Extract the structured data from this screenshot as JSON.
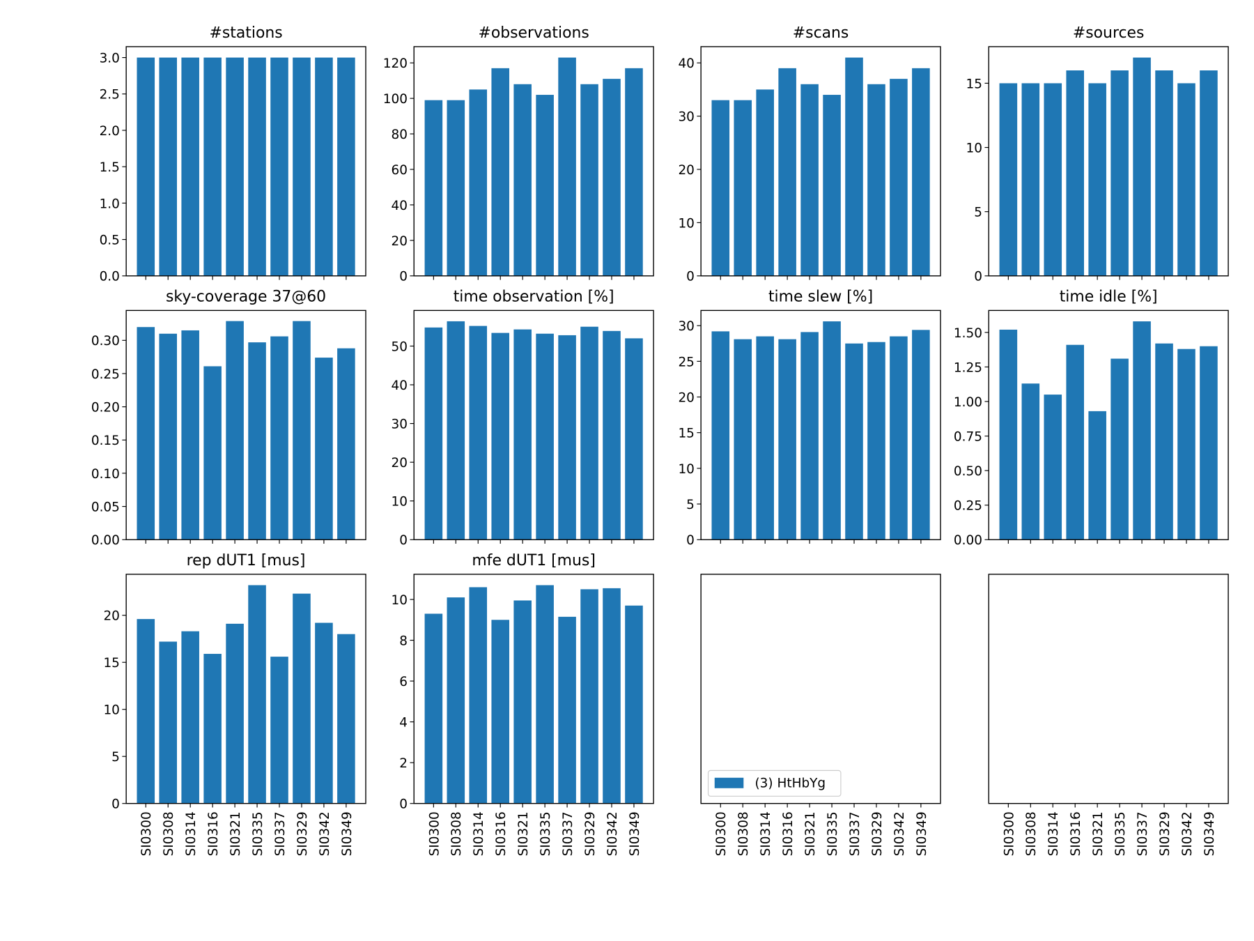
{
  "chart_data": [
    {
      "type": "bar",
      "title": "#stations",
      "color": "#1f77b4",
      "values": [
        3,
        3,
        3,
        3,
        3,
        3,
        3,
        3,
        3,
        3
      ],
      "ylim": [
        0,
        3.15
      ],
      "yticks": [
        {
          "value": 0,
          "label": "0.0"
        },
        0.5,
        {
          "value": 1,
          "label": "1.0"
        },
        1.5,
        {
          "value": 2,
          "label": "2.0"
        },
        2.5,
        {
          "value": 3,
          "label": "3.0"
        }
      ]
    },
    {
      "type": "bar",
      "title": "#observations",
      "color": "#1f77b4",
      "values": [
        99,
        99,
        105,
        117,
        108,
        102,
        123,
        108,
        111,
        117
      ],
      "ylim": [
        0,
        129.15
      ],
      "yticks": [
        0,
        20,
        40,
        60,
        80,
        100,
        120
      ]
    },
    {
      "type": "bar",
      "title": "#scans",
      "color": "#1f77b4",
      "values": [
        33,
        33,
        35,
        39,
        36,
        34,
        41,
        36,
        37,
        39
      ],
      "ylim": [
        0,
        43.05
      ],
      "yticks": [
        0,
        10,
        20,
        30,
        40
      ]
    },
    {
      "type": "bar",
      "title": "#sources",
      "color": "#1f77b4",
      "values": [
        15,
        15,
        15,
        16,
        15,
        16,
        17,
        16,
        15,
        16
      ],
      "ylim": [
        0,
        17.85
      ],
      "yticks": [
        0,
        5,
        10,
        15
      ]
    },
    {
      "type": "bar",
      "title": "sky-coverage 37@60",
      "color": "#1f77b4",
      "values": [
        0.32,
        0.31,
        0.315,
        0.261,
        0.329,
        0.297,
        0.306,
        0.329,
        0.274,
        0.288
      ],
      "ylim": [
        0,
        0.345
      ],
      "yticks": [
        {
          "value": 0,
          "label": "0.00"
        },
        0.05,
        {
          "value": 0.1,
          "label": "0.10"
        },
        0.15,
        {
          "value": 0.2,
          "label": "0.20"
        },
        0.25,
        {
          "value": 0.3,
          "label": "0.30"
        }
      ]
    },
    {
      "type": "bar",
      "title": "time observation [%]",
      "color": "#1f77b4",
      "values": [
        54.8,
        56.4,
        55.2,
        53.4,
        54.3,
        53.2,
        52.8,
        55.0,
        53.9,
        52.0
      ],
      "ylim": [
        0,
        59.2
      ],
      "yticks": [
        0,
        10,
        20,
        30,
        40,
        50
      ]
    },
    {
      "type": "bar",
      "title": "time slew [%]",
      "color": "#1f77b4",
      "values": [
        29.2,
        28.1,
        28.5,
        28.1,
        29.1,
        30.6,
        27.5,
        27.7,
        28.5,
        29.4
      ],
      "ylim": [
        0,
        32.13
      ],
      "yticks": [
        0,
        5,
        10,
        15,
        20,
        25,
        30
      ]
    },
    {
      "type": "bar",
      "title": "time idle [%]",
      "color": "#1f77b4",
      "values": [
        1.52,
        1.13,
        1.05,
        1.41,
        0.93,
        1.31,
        1.58,
        1.42,
        1.38,
        1.4
      ],
      "ylim": [
        0,
        1.659
      ],
      "yticks": [
        {
          "value": 0,
          "label": "0.00"
        },
        0.25,
        {
          "value": 0.5,
          "label": "0.50"
        },
        0.75,
        {
          "value": 1,
          "label": "1.00"
        },
        1.25,
        {
          "value": 1.5,
          "label": "1.50"
        }
      ]
    },
    {
      "type": "bar",
      "title": "rep dUT1 [mus]",
      "color": "#1f77b4",
      "categories": [
        "SI0300",
        "SI0308",
        "SI0314",
        "SI0316",
        "SI0321",
        "SI0335",
        "SI0337",
        "SI0329",
        "SI0342",
        "SI0349"
      ],
      "values": [
        19.6,
        17.2,
        18.3,
        15.9,
        19.1,
        23.2,
        15.6,
        22.3,
        19.2,
        18.0
      ],
      "ylim": [
        0,
        24.36
      ],
      "yticks": [
        0,
        5,
        10,
        15,
        20
      ]
    },
    {
      "type": "bar",
      "title": "mfe dUT1 [mus]",
      "color": "#1f77b4",
      "categories": [
        "SI0300",
        "SI0308",
        "SI0314",
        "SI0316",
        "SI0321",
        "SI0335",
        "SI0337",
        "SI0329",
        "SI0342",
        "SI0349"
      ],
      "values": [
        9.3,
        10.1,
        10.6,
        9.0,
        9.95,
        10.7,
        9.15,
        10.5,
        10.55,
        9.7
      ],
      "ylim": [
        0,
        11.235
      ],
      "yticks": [
        0,
        2,
        4,
        6,
        8,
        10
      ]
    },
    {
      "type": "bar",
      "categories": [
        "SI0300",
        "SI0308",
        "SI0314",
        "SI0316",
        "SI0321",
        "SI0335",
        "SI0337",
        "SI0329",
        "SI0342",
        "SI0349"
      ],
      "legend": {
        "label": "(3) HtHbYg",
        "color": "#1f77b4",
        "corner": "lower left"
      }
    },
    {
      "type": "bar",
      "categories": [
        "SI0300",
        "SI0308",
        "SI0314",
        "SI0316",
        "SI0321",
        "SI0335",
        "SI0337",
        "SI0329",
        "SI0342",
        "SI0349"
      ]
    }
  ]
}
